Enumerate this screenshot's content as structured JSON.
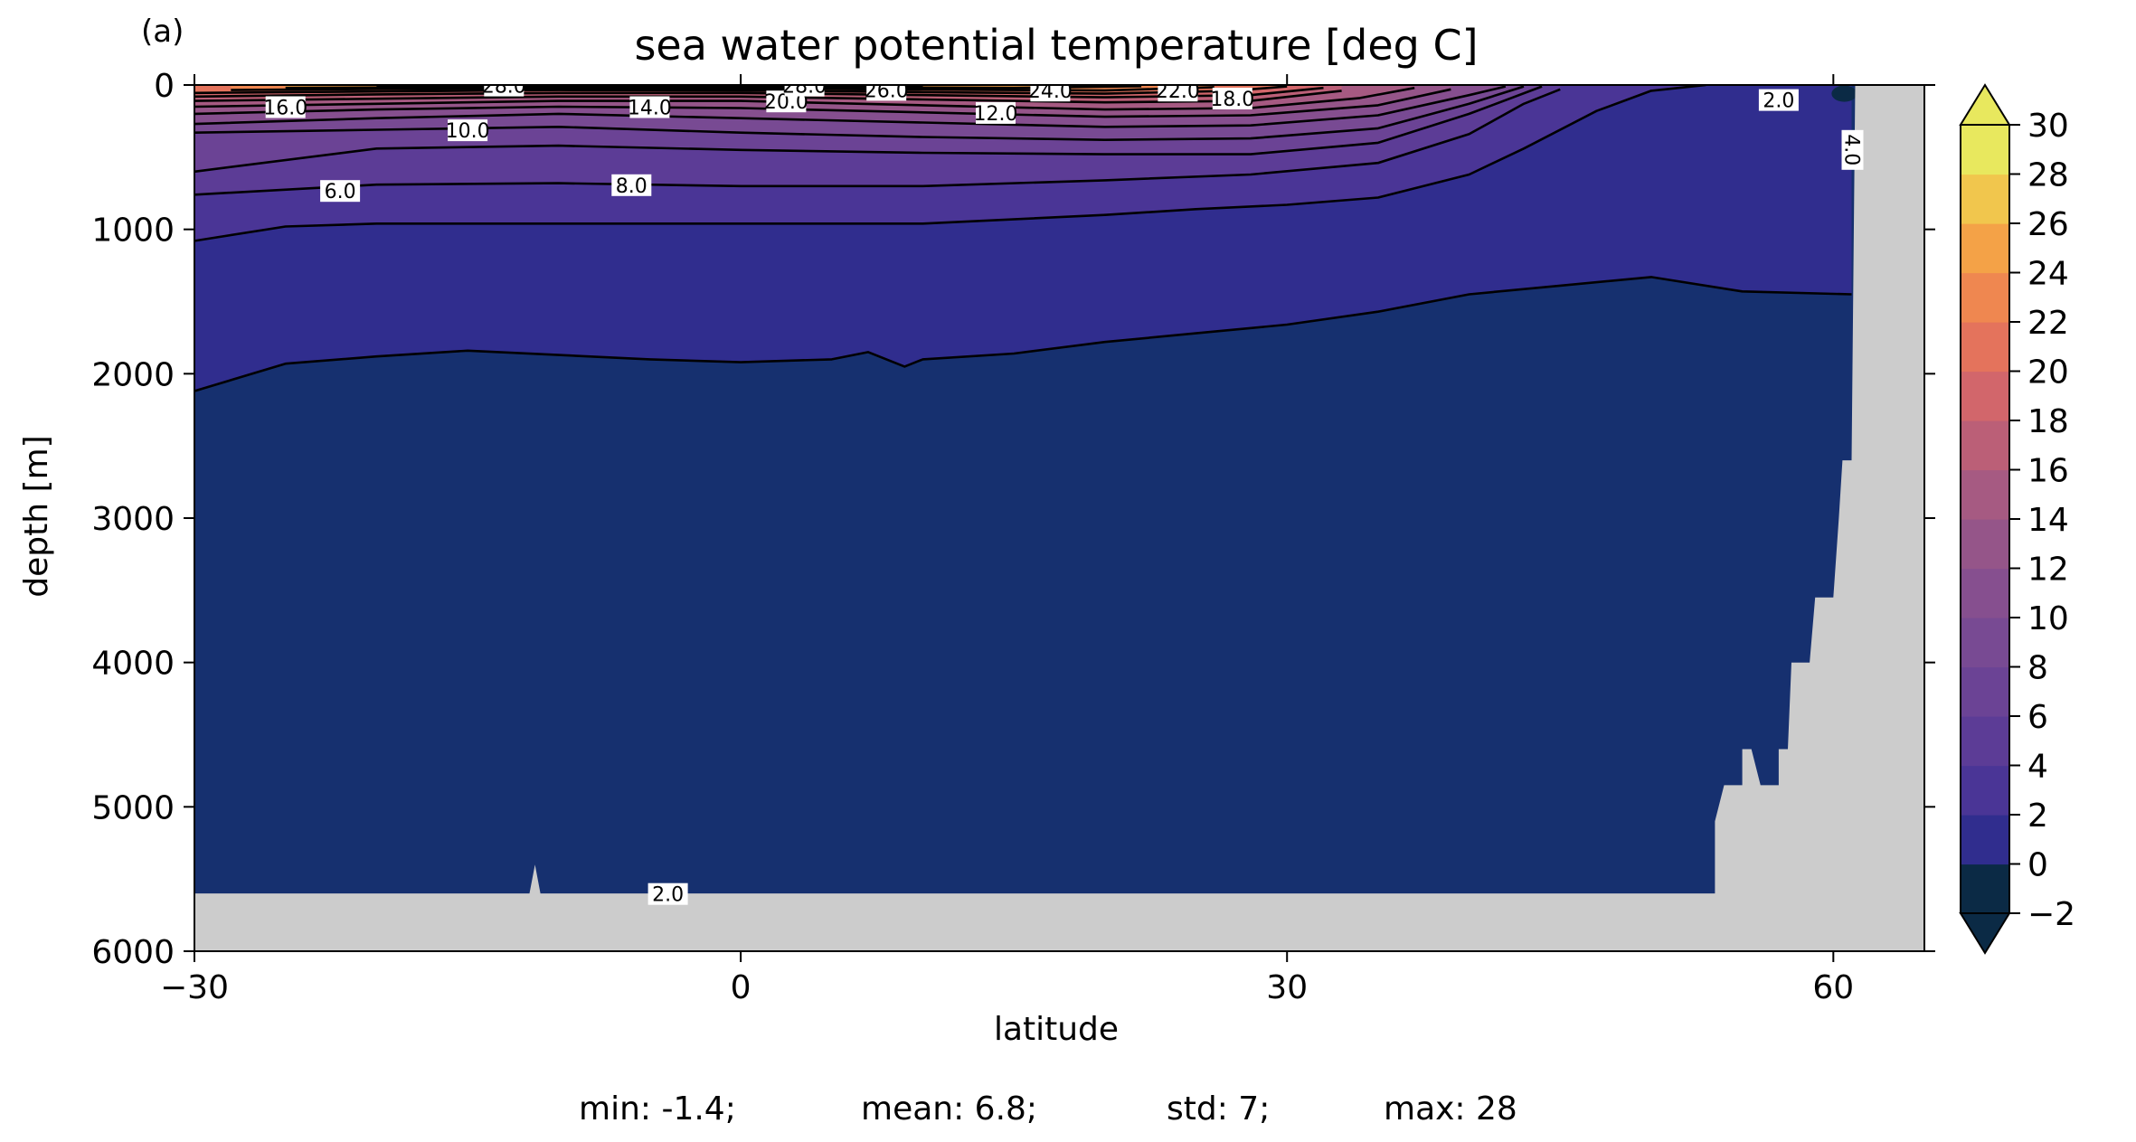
{
  "chart_data": {
    "type": "contour",
    "panel_label": "(a)",
    "title": "sea water potential temperature [deg C]",
    "xlabel": "latitude",
    "ylabel": "depth [m]",
    "xlim": [
      -30,
      65
    ],
    "ylim": [
      6000,
      0
    ],
    "x_ticks": [
      -30,
      0,
      30,
      60
    ],
    "x_tick_labels": [
      "−30",
      "0",
      "30",
      "60"
    ],
    "y_ticks": [
      0,
      1000,
      2000,
      3000,
      4000,
      5000,
      6000
    ],
    "y_tick_labels": [
      "0",
      "1000",
      "2000",
      "3000",
      "4000",
      "5000",
      "6000"
    ],
    "colorbar": {
      "levels": [
        -2,
        0,
        2,
        4,
        6,
        8,
        10,
        12,
        14,
        16,
        18,
        20,
        22,
        24,
        26,
        28,
        30
      ],
      "tick_values": [
        -2,
        0,
        2,
        4,
        6,
        8,
        10,
        12,
        14,
        16,
        18,
        20,
        22,
        24,
        26,
        28,
        30
      ],
      "tick_labels": [
        "−2",
        "0",
        "2",
        "4",
        "6",
        "8",
        "10",
        "12",
        "14",
        "16",
        "18",
        "20",
        "22",
        "24",
        "26",
        "28",
        "30"
      ],
      "colors": [
        "#0b2a45",
        "#16306f",
        "#302d8e",
        "#4a3596",
        "#5c3c96",
        "#6b4395",
        "#784a93",
        "#864f8f",
        "#955589",
        "#a65a82",
        "#bb5f77",
        "#d2666b",
        "#e4735c",
        "#ef8750",
        "#f4a247",
        "#f1c64d",
        "#e8e85e"
      ],
      "extend": "both",
      "under_color": "#0b2a45",
      "over_color": "#e8e85e"
    },
    "isotherms": [
      {
        "level": 2,
        "depth_by_lat": [
          [
            -30,
            2120
          ],
          [
            -25,
            1930
          ],
          [
            -20,
            1880
          ],
          [
            -15,
            1840
          ],
          [
            -10,
            1870
          ],
          [
            -5,
            1900
          ],
          [
            0,
            1920
          ],
          [
            5,
            1900
          ],
          [
            7,
            1850
          ],
          [
            9,
            1950
          ],
          [
            10,
            1900
          ],
          [
            15,
            1860
          ],
          [
            20,
            1780
          ],
          [
            25,
            1720
          ],
          [
            30,
            1660
          ],
          [
            35,
            1570
          ],
          [
            40,
            1450
          ],
          [
            45,
            1390
          ],
          [
            50,
            1330
          ],
          [
            55,
            1430
          ],
          [
            61,
            1450
          ]
        ],
        "labels": [
          {
            "text": "2.0",
            "lat": -4,
            "depth": 5610
          },
          {
            "text": "2.0",
            "lat": 57,
            "depth": 110
          }
        ]
      },
      {
        "level": 4,
        "depth_by_lat": [
          [
            -30,
            1080
          ],
          [
            -25,
            980
          ],
          [
            -20,
            960
          ],
          [
            -10,
            960
          ],
          [
            0,
            960
          ],
          [
            10,
            960
          ],
          [
            20,
            900
          ],
          [
            25,
            860
          ],
          [
            30,
            830
          ],
          [
            35,
            780
          ],
          [
            40,
            620
          ],
          [
            43,
            440
          ],
          [
            47,
            180
          ],
          [
            50,
            40
          ],
          [
            53,
            0
          ]
        ],
        "labels": [
          {
            "text": "4.0",
            "lat": 61,
            "depth": 450
          }
        ]
      },
      {
        "level": 6,
        "depth_by_lat": [
          [
            -30,
            760
          ],
          [
            -20,
            690
          ],
          [
            -10,
            680
          ],
          [
            0,
            700
          ],
          [
            10,
            700
          ],
          [
            20,
            660
          ],
          [
            28,
            620
          ],
          [
            35,
            540
          ],
          [
            40,
            340
          ],
          [
            43,
            130
          ],
          [
            45,
            30
          ]
        ],
        "labels": [
          {
            "text": "6.0",
            "lat": -22,
            "depth": 740
          }
        ]
      },
      {
        "level": 8,
        "depth_by_lat": [
          [
            -30,
            600
          ],
          [
            -20,
            440
          ],
          [
            -10,
            420
          ],
          [
            0,
            450
          ],
          [
            10,
            470
          ],
          [
            20,
            480
          ],
          [
            28,
            480
          ],
          [
            35,
            400
          ],
          [
            40,
            200
          ],
          [
            44,
            10
          ]
        ],
        "labels": [
          {
            "text": "8.0",
            "lat": -6,
            "depth": 700
          }
        ]
      },
      {
        "level": 10,
        "depth_by_lat": [
          [
            -30,
            330
          ],
          [
            -20,
            310
          ],
          [
            -10,
            290
          ],
          [
            0,
            330
          ],
          [
            10,
            360
          ],
          [
            20,
            380
          ],
          [
            28,
            370
          ],
          [
            35,
            300
          ],
          [
            40,
            130
          ],
          [
            43,
            10
          ]
        ],
        "labels": [
          {
            "text": "10.0",
            "lat": -15,
            "depth": 320
          }
        ]
      },
      {
        "level": 12,
        "depth_by_lat": [
          [
            -30,
            270
          ],
          [
            -20,
            230
          ],
          [
            -10,
            200
          ],
          [
            0,
            230
          ],
          [
            10,
            260
          ],
          [
            20,
            290
          ],
          [
            28,
            280
          ],
          [
            35,
            210
          ],
          [
            40,
            70
          ],
          [
            42,
            10
          ]
        ],
        "labels": [
          {
            "text": "12.0",
            "lat": 14,
            "depth": 200
          }
        ]
      },
      {
        "level": 14,
        "depth_by_lat": [
          [
            -30,
            200
          ],
          [
            -20,
            170
          ],
          [
            -10,
            150
          ],
          [
            0,
            160
          ],
          [
            10,
            190
          ],
          [
            20,
            220
          ],
          [
            28,
            210
          ],
          [
            35,
            140
          ],
          [
            39,
            30
          ]
        ],
        "labels": [
          {
            "text": "14.0",
            "lat": -5,
            "depth": 160
          }
        ]
      },
      {
        "level": 16,
        "depth_by_lat": [
          [
            -30,
            150
          ],
          [
            -20,
            130
          ],
          [
            -10,
            110
          ],
          [
            0,
            110
          ],
          [
            10,
            140
          ],
          [
            20,
            170
          ],
          [
            28,
            160
          ],
          [
            34,
            90
          ],
          [
            37,
            20
          ]
        ],
        "labels": [
          {
            "text": "16.0",
            "lat": -25,
            "depth": 160
          }
        ]
      },
      {
        "level": 18,
        "depth_by_lat": [
          [
            -30,
            110
          ],
          [
            -20,
            95
          ],
          [
            -10,
            80
          ],
          [
            0,
            80
          ],
          [
            10,
            100
          ],
          [
            20,
            120
          ],
          [
            28,
            110
          ],
          [
            33,
            40
          ]
        ],
        "labels": [
          {
            "text": "18.0",
            "lat": 27,
            "depth": 100
          }
        ]
      },
      {
        "level": 20,
        "depth_by_lat": [
          [
            -30,
            80
          ],
          [
            -20,
            65
          ],
          [
            -10,
            55
          ],
          [
            0,
            55
          ],
          [
            10,
            70
          ],
          [
            20,
            85
          ],
          [
            28,
            70
          ],
          [
            32,
            20
          ]
        ],
        "labels": [
          {
            "text": "20.0",
            "lat": 2.5,
            "depth": 120
          }
        ]
      },
      {
        "level": 22,
        "depth_by_lat": [
          [
            -30,
            55
          ],
          [
            -20,
            45
          ],
          [
            -10,
            35
          ],
          [
            0,
            38
          ],
          [
            10,
            50
          ],
          [
            20,
            60
          ],
          [
            27,
            40
          ],
          [
            30,
            10
          ]
        ],
        "labels": [
          {
            "text": "22.0",
            "lat": 24,
            "depth": 45
          }
        ]
      },
      {
        "level": 24,
        "depth_by_lat": [
          [
            -28,
            35
          ],
          [
            -20,
            28
          ],
          [
            -10,
            22
          ],
          [
            0,
            25
          ],
          [
            10,
            32
          ],
          [
            20,
            38
          ],
          [
            26,
            15
          ]
        ],
        "labels": [
          {
            "text": "24.0",
            "lat": 17,
            "depth": 45
          }
        ]
      },
      {
        "level": 26,
        "depth_by_lat": [
          [
            -25,
            20
          ],
          [
            -15,
            15
          ],
          [
            -5,
            12
          ],
          [
            5,
            15
          ],
          [
            15,
            20
          ],
          [
            22,
            8
          ]
        ],
        "labels": [
          {
            "text": "26.0",
            "lat": 8,
            "depth": 40
          }
        ]
      },
      {
        "level": 28,
        "depth_by_lat": [
          [
            -20,
            8
          ],
          [
            -10,
            6
          ],
          [
            0,
            6
          ],
          [
            10,
            8
          ]
        ],
        "labels": [
          {
            "text": "28.0",
            "lat": -13,
            "depth": 10
          },
          {
            "text": "28.0",
            "lat": 3.5,
            "depth": 10
          }
        ]
      }
    ],
    "bottom_depth_by_lat": [
      [
        -30,
        5600
      ],
      [
        -11.6,
        5600
      ],
      [
        -11.3,
        5400
      ],
      [
        -11,
        5600
      ],
      [
        53.5,
        5600
      ],
      [
        53.5,
        5100
      ],
      [
        54,
        4850
      ],
      [
        55,
        4850
      ],
      [
        55,
        4600
      ],
      [
        55.5,
        4600
      ],
      [
        56,
        4850
      ],
      [
        57,
        4850
      ],
      [
        57,
        4600
      ],
      [
        57.5,
        4600
      ],
      [
        57.7,
        4000
      ],
      [
        58.7,
        4000
      ],
      [
        59,
        3550
      ],
      [
        60,
        3550
      ],
      [
        60.3,
        3000
      ],
      [
        60.5,
        2600
      ],
      [
        60.8,
        2600
      ],
      [
        61,
        2600
      ],
      [
        61.2,
        0
      ],
      [
        65,
        0
      ]
    ],
    "stats": {
      "min": "min: -1.4;",
      "mean": "mean: 6.8;",
      "std": "std: 7;",
      "max": "max: 28"
    }
  }
}
